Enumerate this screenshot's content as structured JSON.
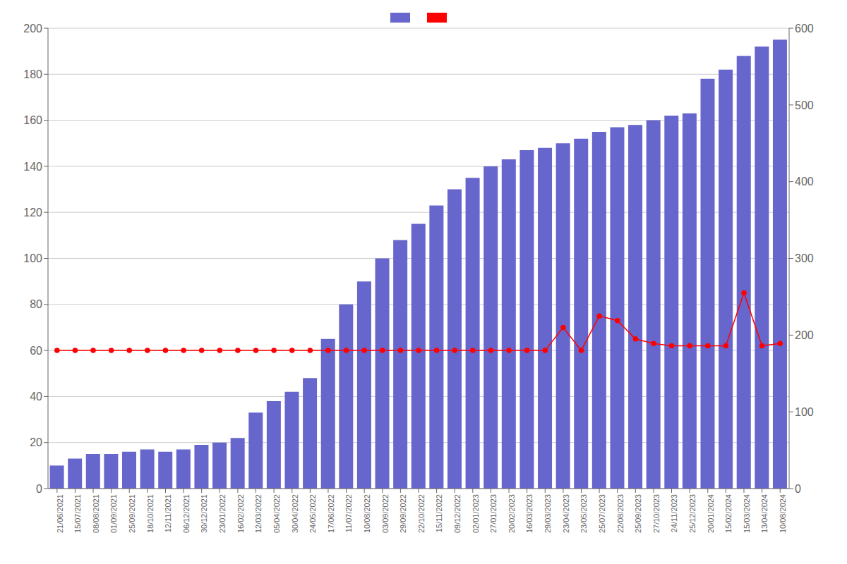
{
  "chart_data": {
    "type": "bar",
    "categories": [
      "21/06/2021",
      "15/07/2021",
      "08/08/2021",
      "01/09/2021",
      "25/09/2021",
      "18/10/2021",
      "12/11/2021",
      "06/12/2021",
      "30/12/2021",
      "23/01/2022",
      "16/02/2022",
      "12/03/2022",
      "05/04/2022",
      "30/04/2022",
      "24/05/2022",
      "17/06/2022",
      "11/07/2022",
      "10/08/2022",
      "03/09/2022",
      "29/09/2022",
      "22/10/2022",
      "15/11/2022",
      "09/12/2022",
      "02/01/2023",
      "27/01/2023",
      "20/02/2023",
      "16/03/2023",
      "29/03/2023",
      "23/04/2023",
      "23/05/2023",
      "25/07/2023",
      "22/08/2023",
      "25/09/2023",
      "27/10/2023",
      "24/11/2023",
      "25/12/2023",
      "20/01/2024",
      "15/02/2024",
      "15/03/2024",
      "13/04/2024",
      "10/08/2024"
    ],
    "series": [
      {
        "type": "bar",
        "color": "#6666cc",
        "values": [
          10,
          13,
          15,
          15,
          16,
          17,
          16,
          17,
          19,
          20,
          22,
          33,
          38,
          42,
          48,
          65,
          80,
          90,
          100,
          108,
          115,
          123,
          130,
          135,
          140,
          143,
          147,
          148,
          150,
          152,
          155,
          157,
          158,
          160,
          162,
          163,
          178,
          182,
          188,
          192,
          195
        ]
      },
      {
        "type": "line",
        "color": "#ff0000",
        "marker": "o",
        "values": [
          60,
          60,
          60,
          60,
          60,
          60,
          60,
          60,
          60,
          60,
          60,
          60,
          60,
          60,
          60,
          60,
          60,
          60,
          60,
          60,
          60,
          60,
          60,
          60,
          60,
          60,
          60,
          60,
          70,
          60,
          75,
          73,
          65,
          63,
          62,
          62,
          62,
          62,
          85,
          62,
          63
        ]
      }
    ],
    "ylim": [
      0,
      200
    ],
    "yticks": [
      0,
      20,
      40,
      60,
      80,
      100,
      120,
      140,
      160,
      180,
      200
    ],
    "y2lim": [
      0,
      600
    ],
    "y2ticks": [
      0,
      100,
      200,
      300,
      400,
      500,
      600
    ],
    "grid": true,
    "legend": "top"
  }
}
